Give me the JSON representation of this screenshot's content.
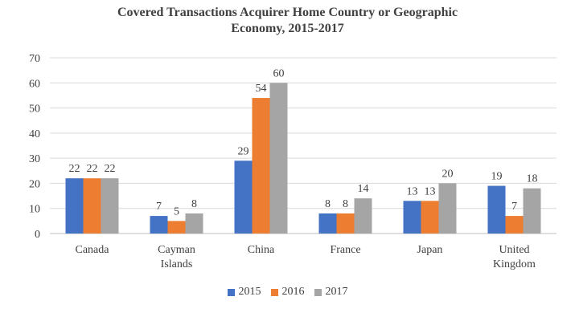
{
  "chart_data": {
    "type": "bar",
    "title_line1": "Covered Transactions Acquirer Home Country or Geographic",
    "title_line2": "Economy, 2015-2017",
    "categories": [
      [
        "Canada"
      ],
      [
        "Cayman",
        "Islands"
      ],
      [
        "China"
      ],
      [
        "France"
      ],
      [
        "Japan"
      ],
      [
        "United",
        "Kingdom"
      ]
    ],
    "series": [
      {
        "name": "2015",
        "color": "#4472C4",
        "values": [
          22,
          7,
          29,
          8,
          13,
          19
        ]
      },
      {
        "name": "2016",
        "color": "#ED7D31",
        "values": [
          22,
          5,
          54,
          8,
          13,
          7
        ]
      },
      {
        "name": "2017",
        "color": "#A5A5A5",
        "values": [
          22,
          8,
          60,
          14,
          20,
          18
        ]
      }
    ],
    "ylim": [
      0,
      70
    ],
    "yticks": [
      0,
      10,
      20,
      30,
      40,
      50,
      60,
      70
    ],
    "grid": true,
    "legend_position": "bottom",
    "data_labels": true
  }
}
